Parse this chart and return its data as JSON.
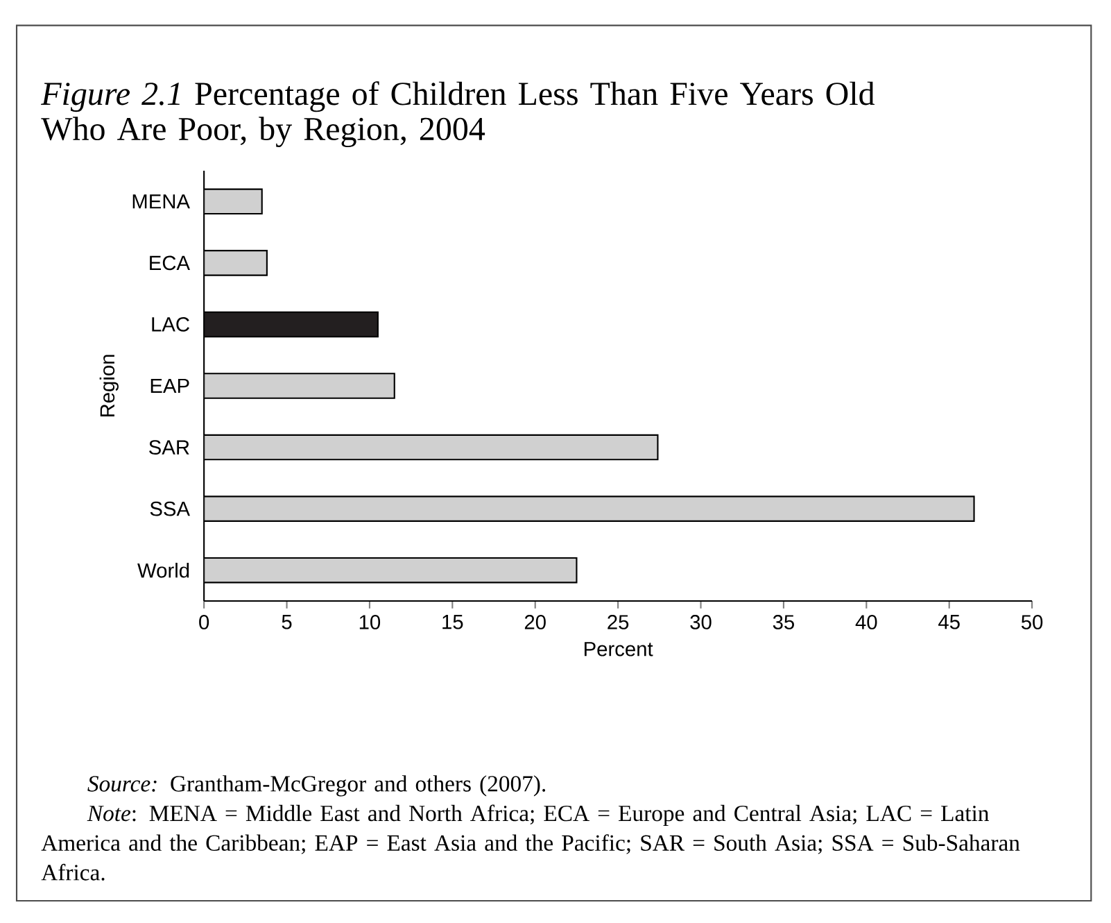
{
  "chart_data": {
    "type": "bar",
    "orientation": "horizontal",
    "title": "*Figure 2.1* Percentage of Children Less Than Five Years Old Who Are Poor, by Region, 2004",
    "xlabel": "Percent",
    "ylabel": "Region",
    "categories": [
      "MENA",
      "ECA",
      "LAC",
      "EAP",
      "SAR",
      "SSA",
      "World"
    ],
    "values": [
      3.5,
      3.8,
      10.5,
      11.5,
      27.4,
      46.5,
      22.5
    ],
    "colors": [
      "#d0d0d0",
      "#d0d0d0",
      "#231f20",
      "#d0d0d0",
      "#d0d0d0",
      "#d0d0d0",
      "#d0d0d0"
    ],
    "xlim": [
      0,
      50
    ],
    "xticks": [
      0,
      5,
      10,
      15,
      20,
      25,
      30,
      35,
      40,
      45,
      50
    ],
    "annotations": [
      "*Source:* Grantham-McGregor and others (2007).",
      "*Note*: MENA = Middle East and North Africa; ECA = Europe and Central Asia; LAC = Latin America and the Caribbean; EAP = East Asia and the Pacific; SAR = South Asia; SSA = Sub-Saharan Africa."
    ]
  }
}
